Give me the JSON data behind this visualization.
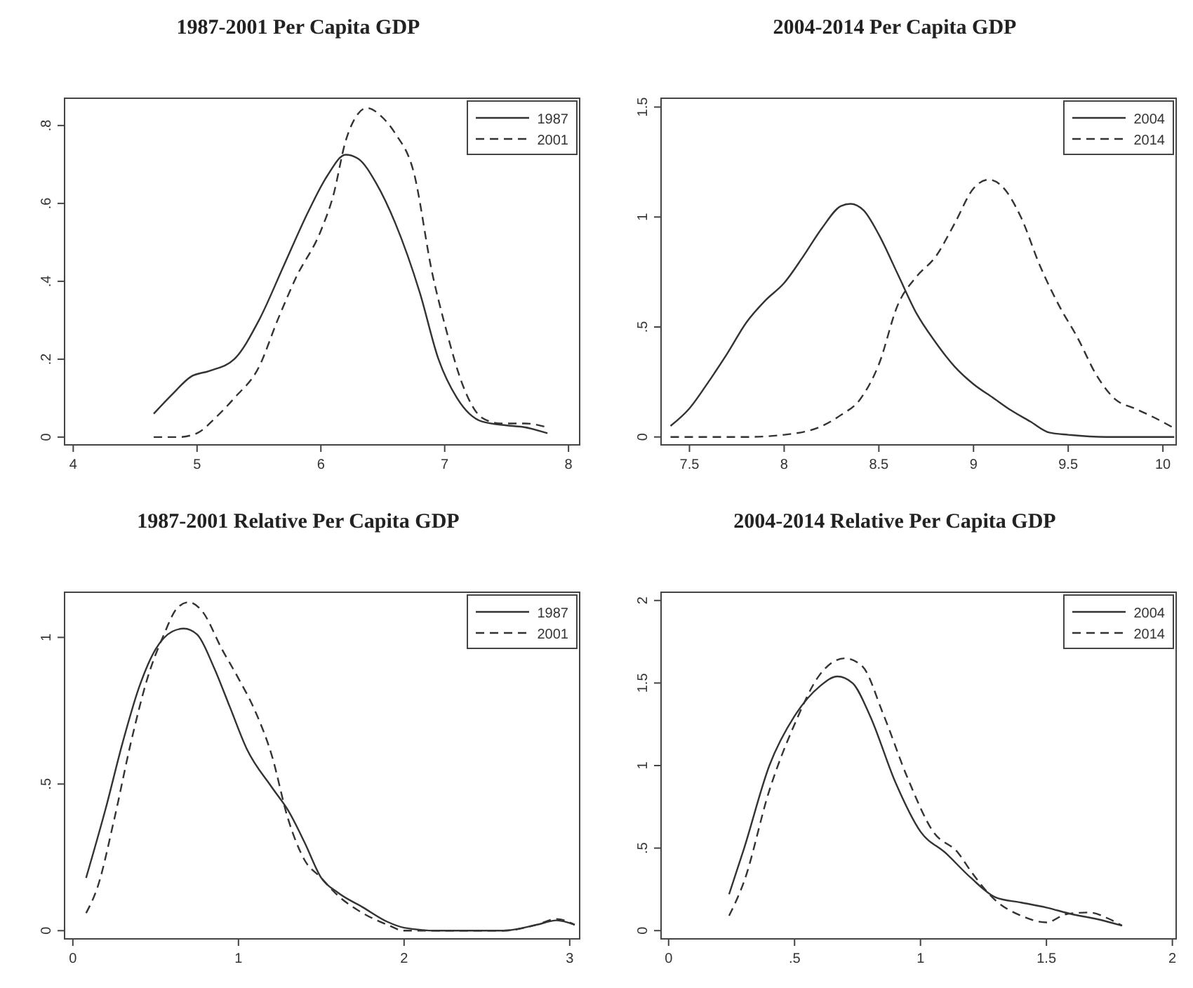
{
  "chart_data": [
    {
      "type": "line",
      "title": "1987-2001 Per Capita GDP",
      "xlim": [
        3.93,
        8.09
      ],
      "ylim": [
        -0.02,
        0.87
      ],
      "xticks": [
        4,
        5,
        6,
        7,
        8
      ],
      "yticks": [
        0,
        {
          "value": 0.2,
          "label": ".2"
        },
        {
          "value": 0.4,
          "label": ".4"
        },
        {
          "value": 0.6,
          "label": ".6"
        },
        {
          "value": 0.8,
          "label": ".8"
        }
      ],
      "legend": "top right",
      "grid": false,
      "series": [
        {
          "name": "1987",
          "color": "#333333",
          "line_style": "solid",
          "x": [
            4.65,
            4.8,
            4.95,
            5.1,
            5.3,
            5.5,
            5.7,
            5.9,
            6.05,
            6.2,
            6.3,
            6.45,
            6.6,
            6.8,
            6.95,
            7.1,
            7.3,
            7.5,
            7.65,
            7.83
          ],
          "values": [
            0.06,
            0.11,
            0.155,
            0.17,
            0.2,
            0.3,
            0.44,
            0.58,
            0.67,
            0.725,
            0.715,
            0.65,
            0.55,
            0.37,
            0.2,
            0.1,
            0.04,
            0.03,
            0.025,
            0.01
          ]
        },
        {
          "name": "2001",
          "color": "#333333",
          "line_style": "dashed",
          "x": [
            4.65,
            4.85,
            5.0,
            5.15,
            5.3,
            5.5,
            5.65,
            5.8,
            6.0,
            6.1,
            6.2,
            6.3,
            6.37,
            6.5,
            6.6,
            6.75,
            6.9,
            7.0,
            7.15,
            7.3,
            7.45,
            7.65,
            7.83
          ],
          "values": [
            0.0,
            0.0,
            0.01,
            0.05,
            0.1,
            0.18,
            0.3,
            0.41,
            0.53,
            0.62,
            0.76,
            0.83,
            0.845,
            0.82,
            0.78,
            0.68,
            0.42,
            0.29,
            0.13,
            0.05,
            0.035,
            0.035,
            0.025
          ]
        }
      ]
    },
    {
      "type": "line",
      "title": "2004-2014 Per Capita GDP",
      "xlim": [
        7.35,
        10.07
      ],
      "ylim": [
        -0.036,
        1.54
      ],
      "xticks": [
        7.5,
        8,
        8.5,
        9,
        9.5,
        10
      ],
      "yticks": [
        0,
        {
          "value": 0.5,
          "label": ".5"
        },
        1,
        1.5
      ],
      "legend": "top right",
      "grid": false,
      "series": [
        {
          "name": "2004",
          "color": "#333333",
          "line_style": "solid",
          "x": [
            7.4,
            7.5,
            7.6,
            7.7,
            7.8,
            7.9,
            8.0,
            8.1,
            8.2,
            8.3,
            8.35,
            8.42,
            8.5,
            8.6,
            8.7,
            8.8,
            8.9,
            9.0,
            9.1,
            9.2,
            9.3,
            9.4,
            9.5,
            9.7,
            10.06
          ],
          "values": [
            0.05,
            0.13,
            0.25,
            0.38,
            0.52,
            0.62,
            0.7,
            0.82,
            0.95,
            1.05,
            1.06,
            1.03,
            0.92,
            0.74,
            0.56,
            0.43,
            0.32,
            0.24,
            0.18,
            0.12,
            0.07,
            0.02,
            0.01,
            0.0,
            0.0
          ]
        },
        {
          "name": "2014",
          "color": "#333333",
          "line_style": "dashed",
          "x": [
            7.4,
            7.8,
            8.0,
            8.2,
            8.3,
            8.4,
            8.5,
            8.6,
            8.7,
            8.8,
            8.9,
            9.0,
            9.08,
            9.15,
            9.25,
            9.35,
            9.45,
            9.55,
            9.65,
            9.75,
            9.85,
            9.95,
            10.06
          ],
          "values": [
            0.0,
            0.0,
            0.01,
            0.05,
            0.1,
            0.17,
            0.33,
            0.6,
            0.73,
            0.82,
            0.97,
            1.13,
            1.17,
            1.14,
            1.0,
            0.78,
            0.6,
            0.45,
            0.28,
            0.17,
            0.13,
            0.09,
            0.04
          ]
        }
      ]
    },
    {
      "type": "line",
      "title": "1987-2001 Relative Per Capita GDP",
      "xlim": [
        -0.05,
        3.06
      ],
      "ylim": [
        -0.028,
        1.154
      ],
      "xticks": [
        0,
        1,
        2,
        3
      ],
      "yticks": [
        0,
        {
          "value": 0.5,
          "label": ".5"
        },
        1
      ],
      "legend": "top right",
      "grid": false,
      "series": [
        {
          "name": "1987",
          "color": "#333333",
          "line_style": "solid",
          "x": [
            0.08,
            0.2,
            0.3,
            0.4,
            0.5,
            0.6,
            0.67,
            0.75,
            0.85,
            0.95,
            1.05,
            1.2,
            1.3,
            1.4,
            1.5,
            1.6,
            1.75,
            1.9,
            2.0,
            2.2,
            2.4,
            2.6,
            2.8,
            2.92,
            3.03
          ],
          "values": [
            0.18,
            0.42,
            0.64,
            0.83,
            0.96,
            1.02,
            1.03,
            1.01,
            0.9,
            0.76,
            0.62,
            0.49,
            0.41,
            0.3,
            0.18,
            0.13,
            0.08,
            0.03,
            0.01,
            0.0,
            0.0,
            0.0,
            0.02,
            0.035,
            0.02
          ]
        },
        {
          "name": "2001",
          "color": "#333333",
          "line_style": "dashed",
          "x": [
            0.08,
            0.15,
            0.25,
            0.35,
            0.45,
            0.55,
            0.63,
            0.7,
            0.78,
            0.9,
            1.0,
            1.1,
            1.2,
            1.3,
            1.4,
            1.5,
            1.6,
            1.75,
            1.9,
            2.0,
            2.3,
            2.6,
            2.8,
            2.92,
            3.03
          ],
          "values": [
            0.06,
            0.15,
            0.38,
            0.64,
            0.86,
            1.01,
            1.1,
            1.12,
            1.09,
            0.96,
            0.86,
            0.75,
            0.6,
            0.38,
            0.24,
            0.18,
            0.12,
            0.06,
            0.02,
            0.0,
            0.0,
            0.0,
            0.02,
            0.04,
            0.02
          ]
        }
      ]
    },
    {
      "type": "line",
      "title": "2004-2014 Relative Per Capita GDP",
      "xlim": [
        -0.03,
        2.015
      ],
      "ylim": [
        -0.05,
        2.05
      ],
      "xticks": [
        0,
        {
          "value": 0.5,
          "label": ".5"
        },
        1,
        1.5,
        2
      ],
      "yticks": [
        0,
        {
          "value": 0.5,
          "label": ".5"
        },
        1,
        1.5,
        2
      ],
      "legend": "top right",
      "grid": false,
      "series": [
        {
          "name": "2004",
          "color": "#333333",
          "line_style": "solid",
          "x": [
            0.24,
            0.3,
            0.4,
            0.5,
            0.6,
            0.67,
            0.73,
            0.8,
            0.9,
            1.0,
            1.1,
            1.2,
            1.3,
            1.4,
            1.5,
            1.6,
            1.7,
            1.8
          ],
          "values": [
            0.22,
            0.5,
            1.0,
            1.3,
            1.48,
            1.54,
            1.5,
            1.3,
            0.9,
            0.6,
            0.47,
            0.32,
            0.2,
            0.17,
            0.14,
            0.1,
            0.07,
            0.03
          ]
        },
        {
          "name": "2014",
          "color": "#333333",
          "line_style": "dashed",
          "x": [
            0.24,
            0.3,
            0.4,
            0.5,
            0.6,
            0.7,
            0.77,
            0.85,
            0.95,
            1.05,
            1.15,
            1.2,
            1.3,
            1.4,
            1.5,
            1.58,
            1.67,
            1.75,
            1.8
          ],
          "values": [
            0.09,
            0.3,
            0.85,
            1.25,
            1.55,
            1.65,
            1.6,
            1.32,
            0.92,
            0.6,
            0.47,
            0.36,
            0.18,
            0.09,
            0.05,
            0.1,
            0.11,
            0.07,
            0.03
          ]
        }
      ]
    }
  ]
}
